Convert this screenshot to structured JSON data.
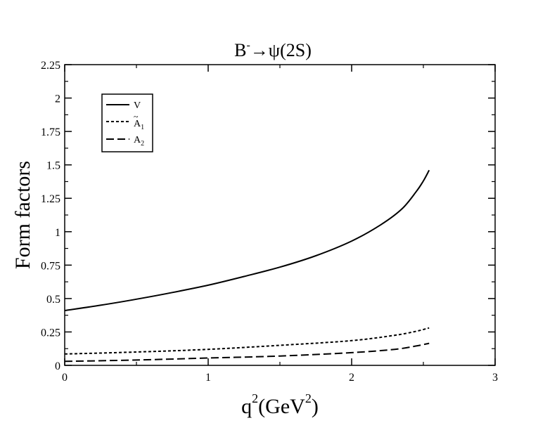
{
  "chart_data": {
    "type": "line",
    "title": {
      "main": "B",
      "superscript": "-",
      "arrow": "→",
      "rest": "ψ(2S)"
    },
    "xlabel": {
      "base": "q",
      "sup1": "2",
      "mid": "(GeV",
      "sup2": "2",
      "end": ")"
    },
    "ylabel": "Form factors",
    "xlim": [
      0,
      3
    ],
    "ylim": [
      0,
      2.25
    ],
    "x_ticks": [
      "0",
      "1",
      "2",
      "3"
    ],
    "y_ticks": [
      "0",
      "0.25",
      "0.5",
      "0.75",
      "1",
      "1.25",
      "1.5",
      "1.75",
      "2",
      "2.25"
    ],
    "grid": false,
    "legend_position": "top-left",
    "series": [
      {
        "name": "V",
        "style": "solid",
        "x": [
          0,
          0.25,
          0.5,
          0.75,
          1.0,
          1.25,
          1.5,
          1.75,
          2.0,
          2.2,
          2.35,
          2.45,
          2.5,
          2.54
        ],
        "y": [
          0.41,
          0.45,
          0.495,
          0.545,
          0.6,
          0.665,
          0.735,
          0.82,
          0.93,
          1.05,
          1.17,
          1.3,
          1.38,
          1.46
        ]
      },
      {
        "name": "Ã₁",
        "label_base": "A",
        "label_accent": "~",
        "label_sub": "1",
        "style": "dotted",
        "x": [
          0,
          0.5,
          1.0,
          1.5,
          2.0,
          2.3,
          2.45,
          2.54
        ],
        "y": [
          0.085,
          0.1,
          0.12,
          0.15,
          0.185,
          0.225,
          0.255,
          0.28
        ]
      },
      {
        "name": "A₂",
        "label_base": "A",
        "label_sub": "2",
        "style": "dashed",
        "x": [
          0,
          0.5,
          1.0,
          1.5,
          2.0,
          2.3,
          2.45,
          2.54
        ],
        "y": [
          0.03,
          0.04,
          0.055,
          0.07,
          0.095,
          0.12,
          0.145,
          0.165
        ]
      }
    ]
  }
}
